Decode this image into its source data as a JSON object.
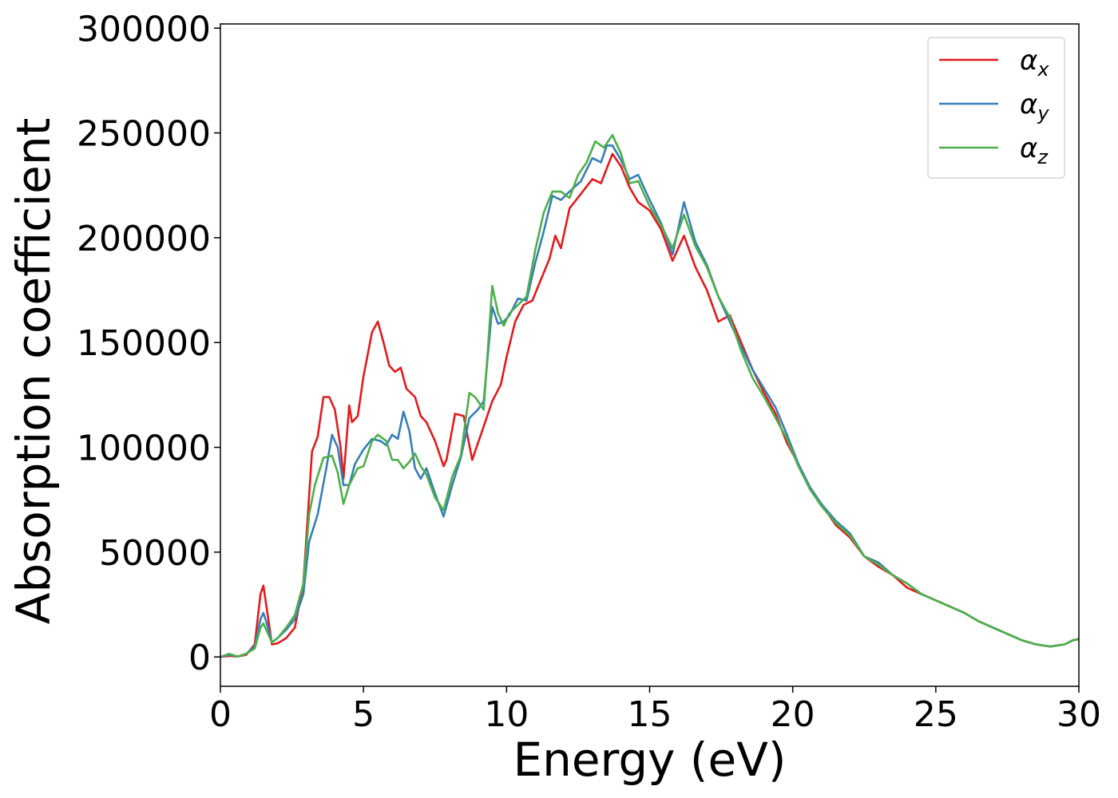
{
  "chart_data": {
    "type": "line",
    "title": "",
    "xlabel": "Energy (eV)",
    "ylabel": "Absorption coefficient",
    "xlim": [
      0,
      30
    ],
    "ylim": [
      -14000,
      302000
    ],
    "xticks": [
      0,
      5,
      10,
      15,
      20,
      25,
      30
    ],
    "yticks": [
      0,
      50000,
      100000,
      150000,
      200000,
      250000,
      300000
    ],
    "grid": false,
    "legend_position": "top-right",
    "series": [
      {
        "name": "αx",
        "symbol": "α",
        "subscript": "x",
        "color": "#e41a1c",
        "points": [
          [
            0,
            0
          ],
          [
            0.3,
            500
          ],
          [
            0.6,
            200
          ],
          [
            0.9,
            1000
          ],
          [
            1.2,
            6000
          ],
          [
            1.4,
            30000
          ],
          [
            1.5,
            34000
          ],
          [
            1.6,
            25000
          ],
          [
            1.8,
            6000
          ],
          [
            2.0,
            6500
          ],
          [
            2.3,
            9000
          ],
          [
            2.6,
            14000
          ],
          [
            2.9,
            35000
          ],
          [
            3.2,
            98000
          ],
          [
            3.4,
            105000
          ],
          [
            3.6,
            124000
          ],
          [
            3.8,
            124000
          ],
          [
            4.0,
            118000
          ],
          [
            4.2,
            100000
          ],
          [
            4.3,
            85000
          ],
          [
            4.5,
            120000
          ],
          [
            4.6,
            112000
          ],
          [
            4.8,
            115000
          ],
          [
            5.0,
            134000
          ],
          [
            5.3,
            155000
          ],
          [
            5.5,
            160000
          ],
          [
            5.7,
            150000
          ],
          [
            5.9,
            139000
          ],
          [
            6.1,
            136000
          ],
          [
            6.3,
            138000
          ],
          [
            6.5,
            128000
          ],
          [
            6.8,
            124000
          ],
          [
            7.0,
            115000
          ],
          [
            7.2,
            112000
          ],
          [
            7.5,
            103000
          ],
          [
            7.8,
            91000
          ],
          [
            7.9,
            94000
          ],
          [
            8.2,
            116000
          ],
          [
            8.5,
            115000
          ],
          [
            8.8,
            94000
          ],
          [
            9.2,
            110000
          ],
          [
            9.5,
            122000
          ],
          [
            9.8,
            130000
          ],
          [
            10.0,
            143000
          ],
          [
            10.3,
            160000
          ],
          [
            10.6,
            168000
          ],
          [
            10.9,
            170000
          ],
          [
            11.2,
            180000
          ],
          [
            11.5,
            190000
          ],
          [
            11.7,
            201000
          ],
          [
            11.9,
            195000
          ],
          [
            12.2,
            214000
          ],
          [
            12.6,
            221000
          ],
          [
            13.0,
            228000
          ],
          [
            13.3,
            226000
          ],
          [
            13.7,
            240000
          ],
          [
            14.0,
            234000
          ],
          [
            14.3,
            224000
          ],
          [
            14.6,
            217000
          ],
          [
            15.0,
            213000
          ],
          [
            15.4,
            204000
          ],
          [
            15.8,
            189000
          ],
          [
            16.2,
            201000
          ],
          [
            16.6,
            186000
          ],
          [
            17.0,
            175000
          ],
          [
            17.4,
            160000
          ],
          [
            17.8,
            163000
          ],
          [
            18.2,
            150000
          ],
          [
            18.6,
            137000
          ],
          [
            19.0,
            126000
          ],
          [
            19.4,
            116000
          ],
          [
            19.8,
            102000
          ],
          [
            20.2,
            92000
          ],
          [
            20.6,
            81000
          ],
          [
            21.0,
            73000
          ],
          [
            21.5,
            63000
          ],
          [
            22.0,
            57000
          ],
          [
            22.5,
            48000
          ],
          [
            23.0,
            43000
          ],
          [
            23.5,
            39000
          ],
          [
            24.0,
            33000
          ],
          [
            24.5,
            30000
          ],
          [
            25.0,
            27000
          ],
          [
            25.5,
            24000
          ],
          [
            26.0,
            21000
          ],
          [
            26.5,
            17000
          ],
          [
            27.0,
            14000
          ],
          [
            27.5,
            11000
          ],
          [
            28.0,
            8000
          ],
          [
            28.5,
            6000
          ],
          [
            29.0,
            5000
          ],
          [
            29.5,
            6000
          ],
          [
            29.8,
            8000
          ],
          [
            30.0,
            8500
          ]
        ]
      },
      {
        "name": "αy",
        "symbol": "α",
        "subscript": "y",
        "color": "#377eb8",
        "points": [
          [
            0,
            0
          ],
          [
            0.3,
            1000
          ],
          [
            0.6,
            200
          ],
          [
            0.9,
            1500
          ],
          [
            1.2,
            5000
          ],
          [
            1.4,
            18000
          ],
          [
            1.5,
            21000
          ],
          [
            1.6,
            17000
          ],
          [
            1.8,
            7000
          ],
          [
            2.0,
            9000
          ],
          [
            2.3,
            13000
          ],
          [
            2.6,
            18000
          ],
          [
            2.9,
            30000
          ],
          [
            3.1,
            55000
          ],
          [
            3.4,
            68000
          ],
          [
            3.7,
            90000
          ],
          [
            3.9,
            106000
          ],
          [
            4.1,
            100000
          ],
          [
            4.3,
            82000
          ],
          [
            4.5,
            82000
          ],
          [
            4.7,
            92000
          ],
          [
            5.0,
            99000
          ],
          [
            5.3,
            104000
          ],
          [
            5.6,
            103000
          ],
          [
            5.8,
            101000
          ],
          [
            6.0,
            106000
          ],
          [
            6.2,
            104000
          ],
          [
            6.4,
            117000
          ],
          [
            6.6,
            108000
          ],
          [
            6.8,
            90000
          ],
          [
            7.0,
            85000
          ],
          [
            7.2,
            90000
          ],
          [
            7.5,
            78000
          ],
          [
            7.8,
            67000
          ],
          [
            8.1,
            82000
          ],
          [
            8.4,
            95000
          ],
          [
            8.7,
            114000
          ],
          [
            9.0,
            118000
          ],
          [
            9.2,
            122000
          ],
          [
            9.5,
            167000
          ],
          [
            9.7,
            159000
          ],
          [
            9.9,
            160000
          ],
          [
            10.1,
            163000
          ],
          [
            10.4,
            171000
          ],
          [
            10.7,
            170000
          ],
          [
            11.0,
            188000
          ],
          [
            11.3,
            203000
          ],
          [
            11.6,
            220000
          ],
          [
            11.9,
            218000
          ],
          [
            12.2,
            222000
          ],
          [
            12.6,
            227000
          ],
          [
            13.0,
            238000
          ],
          [
            13.3,
            236000
          ],
          [
            13.5,
            244000
          ],
          [
            13.7,
            244000
          ],
          [
            14.0,
            237000
          ],
          [
            14.3,
            228000
          ],
          [
            14.6,
            230000
          ],
          [
            15.0,
            218000
          ],
          [
            15.4,
            207000
          ],
          [
            15.8,
            192000
          ],
          [
            16.2,
            217000
          ],
          [
            16.6,
            198000
          ],
          [
            17.0,
            187000
          ],
          [
            17.4,
            172000
          ],
          [
            17.8,
            160000
          ],
          [
            18.2,
            148000
          ],
          [
            18.6,
            137000
          ],
          [
            19.0,
            128000
          ],
          [
            19.4,
            119000
          ],
          [
            19.8,
            106000
          ],
          [
            20.2,
            92000
          ],
          [
            20.6,
            81000
          ],
          [
            21.0,
            73000
          ],
          [
            21.5,
            65000
          ],
          [
            22.0,
            59000
          ],
          [
            22.5,
            48000
          ],
          [
            23.0,
            45000
          ],
          [
            23.5,
            39000
          ],
          [
            24.0,
            35000
          ],
          [
            24.5,
            30000
          ],
          [
            25.0,
            27000
          ],
          [
            25.5,
            24000
          ],
          [
            26.0,
            21000
          ],
          [
            26.5,
            17000
          ],
          [
            27.0,
            14000
          ],
          [
            27.5,
            11000
          ],
          [
            28.0,
            8000
          ],
          [
            28.5,
            6000
          ],
          [
            29.0,
            5000
          ],
          [
            29.5,
            6000
          ],
          [
            29.8,
            8000
          ],
          [
            30.0,
            8500
          ]
        ]
      },
      {
        "name": "αz",
        "symbol": "α",
        "subscript": "z",
        "color": "#4daf4a",
        "points": [
          [
            0,
            0
          ],
          [
            0.3,
            1500
          ],
          [
            0.6,
            200
          ],
          [
            0.9,
            1500
          ],
          [
            1.2,
            4000
          ],
          [
            1.4,
            14000
          ],
          [
            1.5,
            16000
          ],
          [
            1.6,
            13000
          ],
          [
            1.8,
            7000
          ],
          [
            2.0,
            9000
          ],
          [
            2.3,
            14000
          ],
          [
            2.6,
            20000
          ],
          [
            2.9,
            35000
          ],
          [
            3.1,
            68000
          ],
          [
            3.3,
            82000
          ],
          [
            3.6,
            95000
          ],
          [
            3.9,
            96000
          ],
          [
            4.1,
            88000
          ],
          [
            4.3,
            73000
          ],
          [
            4.5,
            82000
          ],
          [
            4.8,
            90000
          ],
          [
            5.0,
            91000
          ],
          [
            5.3,
            103000
          ],
          [
            5.5,
            106000
          ],
          [
            5.8,
            103000
          ],
          [
            6.0,
            94000
          ],
          [
            6.2,
            94000
          ],
          [
            6.4,
            90000
          ],
          [
            6.6,
            93000
          ],
          [
            6.8,
            97000
          ],
          [
            7.0,
            91000
          ],
          [
            7.2,
            87000
          ],
          [
            7.5,
            76000
          ],
          [
            7.8,
            70000
          ],
          [
            8.1,
            86000
          ],
          [
            8.4,
            96000
          ],
          [
            8.7,
            126000
          ],
          [
            8.9,
            124000
          ],
          [
            9.2,
            118000
          ],
          [
            9.5,
            177000
          ],
          [
            9.7,
            164000
          ],
          [
            9.9,
            158000
          ],
          [
            10.1,
            164000
          ],
          [
            10.4,
            168000
          ],
          [
            10.7,
            172000
          ],
          [
            11.0,
            194000
          ],
          [
            11.3,
            212000
          ],
          [
            11.6,
            222000
          ],
          [
            11.9,
            222000
          ],
          [
            12.2,
            219000
          ],
          [
            12.5,
            230000
          ],
          [
            12.8,
            236000
          ],
          [
            13.1,
            246000
          ],
          [
            13.4,
            243000
          ],
          [
            13.7,
            249000
          ],
          [
            14.0,
            240000
          ],
          [
            14.3,
            226000
          ],
          [
            14.6,
            227000
          ],
          [
            15.0,
            215000
          ],
          [
            15.4,
            206000
          ],
          [
            15.8,
            195000
          ],
          [
            16.2,
            211000
          ],
          [
            16.6,
            196000
          ],
          [
            17.0,
            186000
          ],
          [
            17.4,
            172000
          ],
          [
            17.8,
            162000
          ],
          [
            18.2,
            146000
          ],
          [
            18.6,
            133000
          ],
          [
            19.0,
            124000
          ],
          [
            19.4,
            114000
          ],
          [
            19.8,
            104000
          ],
          [
            20.2,
            91000
          ],
          [
            20.6,
            80000
          ],
          [
            21.0,
            72000
          ],
          [
            21.5,
            64000
          ],
          [
            22.0,
            58000
          ],
          [
            22.5,
            48000
          ],
          [
            23.0,
            44000
          ],
          [
            23.5,
            39000
          ],
          [
            24.0,
            35000
          ],
          [
            24.5,
            30000
          ],
          [
            25.0,
            27000
          ],
          [
            25.5,
            24000
          ],
          [
            26.0,
            21000
          ],
          [
            26.5,
            17000
          ],
          [
            27.0,
            14000
          ],
          [
            27.5,
            11000
          ],
          [
            28.0,
            8000
          ],
          [
            28.5,
            6000
          ],
          [
            29.0,
            5000
          ],
          [
            29.5,
            6000
          ],
          [
            29.8,
            8000
          ],
          [
            30.0,
            8500
          ]
        ]
      }
    ]
  }
}
